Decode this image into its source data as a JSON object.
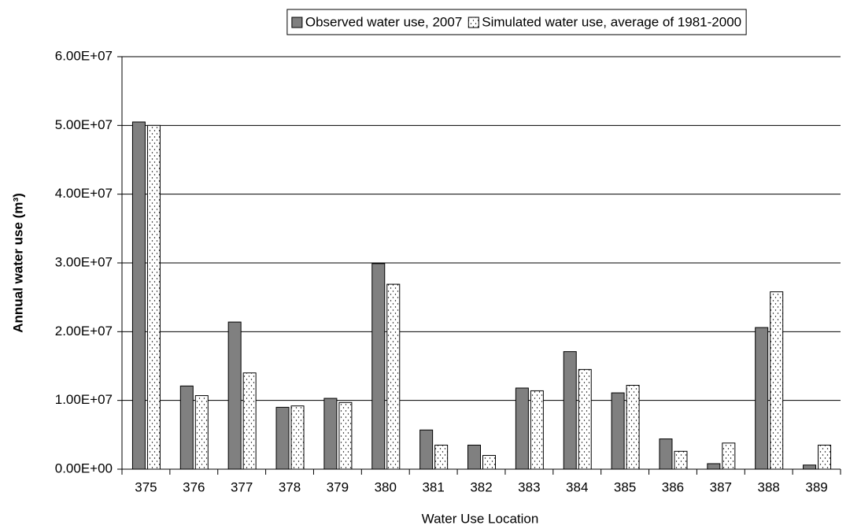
{
  "chart_data": {
    "type": "bar",
    "x_label": "Water Use Location",
    "y_label": "Annual water use (m³)",
    "categories": [
      "375",
      "376",
      "377",
      "378",
      "379",
      "380",
      "381",
      "382",
      "383",
      "384",
      "385",
      "386",
      "387",
      "388",
      "389"
    ],
    "series": [
      {
        "name": "Observed water use, 2007",
        "color": "#808080",
        "values": [
          50500000,
          12100000,
          21400000,
          9000000,
          10300000,
          29900000,
          5700000,
          3500000,
          11800000,
          17100000,
          11100000,
          4400000,
          800000,
          20600000,
          600000
        ]
      },
      {
        "name": "Simulated water use, average of 1981-2000",
        "color": "#ffffff",
        "pattern": "dots",
        "values": [
          50000000,
          10700000,
          14000000,
          9200000,
          9700000,
          26900000,
          3500000,
          2000000,
          11400000,
          14500000,
          12200000,
          2600000,
          3800000,
          25800000,
          3500000
        ]
      }
    ],
    "ylim": [
      0,
      60000000
    ],
    "yticks": [
      {
        "value": 0,
        "label": "0.00E+00"
      },
      {
        "value": 10000000,
        "label": "1.00E+07"
      },
      {
        "value": 20000000,
        "label": "2.00E+07"
      },
      {
        "value": 30000000,
        "label": "3.00E+07"
      },
      {
        "value": 40000000,
        "label": "4.00E+07"
      },
      {
        "value": 50000000,
        "label": "5.00E+07"
      },
      {
        "value": 60000000,
        "label": "6.00E+07"
      }
    ],
    "grid": true,
    "legend": "top"
  }
}
